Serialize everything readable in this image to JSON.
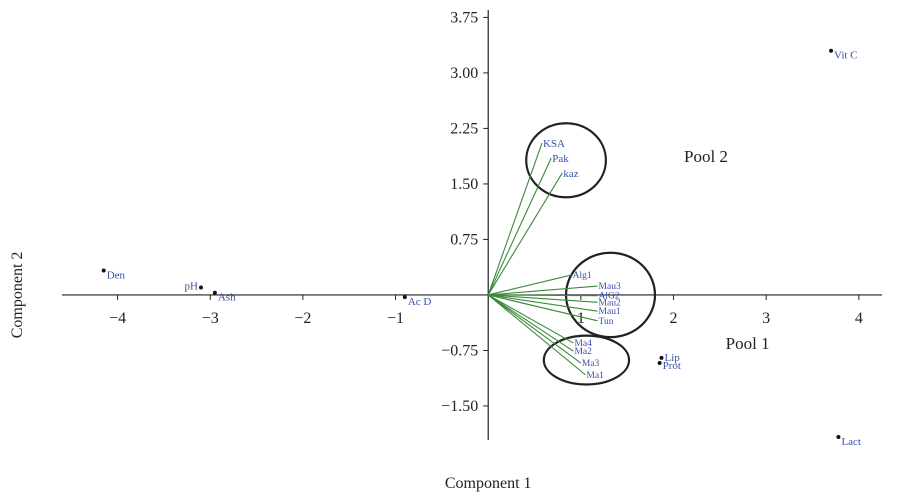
{
  "chart_data": {
    "type": "scatter",
    "title": "",
    "xlabel": "Component 1",
    "ylabel": "Component 2",
    "xlim": [
      -4.6,
      4.25
    ],
    "ylim": [
      -1.96,
      3.85
    ],
    "x_ticks": [
      -4,
      -3,
      -2,
      -1,
      1,
      2,
      3,
      4
    ],
    "y_ticks": [
      3.75,
      3.0,
      2.25,
      1.5,
      0.75,
      -0.75,
      -1.5
    ],
    "x_tick_labels": [
      "−4",
      "−3",
      "−2",
      "−1",
      "1",
      "2",
      "3",
      "4"
    ],
    "y_tick_labels": [
      "3.75",
      "3.00",
      "2.25",
      "1.50",
      "0.75",
      "−0.75",
      "−1.50"
    ],
    "grid": false,
    "points": [
      {
        "label": "Vit C",
        "x": 3.7,
        "y": 3.3
      },
      {
        "label": "Den",
        "x": -4.15,
        "y": 0.33
      },
      {
        "label": "pH",
        "x": -3.1,
        "y": 0.1
      },
      {
        "label": "Ash",
        "x": -2.95,
        "y": 0.03
      },
      {
        "label": "Ac D",
        "x": -0.9,
        "y": -0.03
      },
      {
        "label": "Lip",
        "x": 1.87,
        "y": -0.85
      },
      {
        "label": "Prot",
        "x": 1.85,
        "y": -0.92
      },
      {
        "label": "Lact",
        "x": 3.78,
        "y": -1.92
      }
    ],
    "vectors": [
      {
        "label": "KSA",
        "x": 0.58,
        "y": 2.05
      },
      {
        "label": "Pak",
        "x": 0.68,
        "y": 1.85
      },
      {
        "label": "kaz",
        "x": 0.8,
        "y": 1.65
      },
      {
        "label": "Alg1",
        "x": 0.9,
        "y": 0.27
      },
      {
        "label": "Mau3",
        "x": 1.18,
        "y": 0.12
      },
      {
        "label": "AlG2",
        "x": 1.18,
        "y": -0.01
      },
      {
        "label": "Mau2",
        "x": 1.18,
        "y": -0.1
      },
      {
        "label": "Mau1",
        "x": 1.18,
        "y": -0.22
      },
      {
        "label": "Tun",
        "x": 1.18,
        "y": -0.35
      },
      {
        "label": "Ma4",
        "x": 0.92,
        "y": -0.65
      },
      {
        "label": "Ma2",
        "x": 0.92,
        "y": -0.76
      },
      {
        "label": "Ma3",
        "x": 1.0,
        "y": -0.92
      },
      {
        "label": "Ma1",
        "x": 1.05,
        "y": -1.08
      }
    ],
    "pools": [
      {
        "label": "Pool 2",
        "x": 2.35,
        "y": 1.88
      },
      {
        "label": "Pool 1",
        "x": 2.8,
        "y": -0.65
      }
    ],
    "circles": [
      {
        "cx": 0.84,
        "cy": 1.82,
        "rx": 0.43,
        "ry": 0.5
      },
      {
        "cx": 1.32,
        "cy": 0.0,
        "rx": 0.48,
        "ry": 0.57
      },
      {
        "cx": 1.06,
        "cy": -0.88,
        "rx": 0.46,
        "ry": 0.33
      }
    ],
    "colors": {
      "vector": "#3a8a3a",
      "label": "#3a4fa8",
      "axis": "#222222",
      "point": "#111111",
      "circle": "#222222"
    }
  }
}
